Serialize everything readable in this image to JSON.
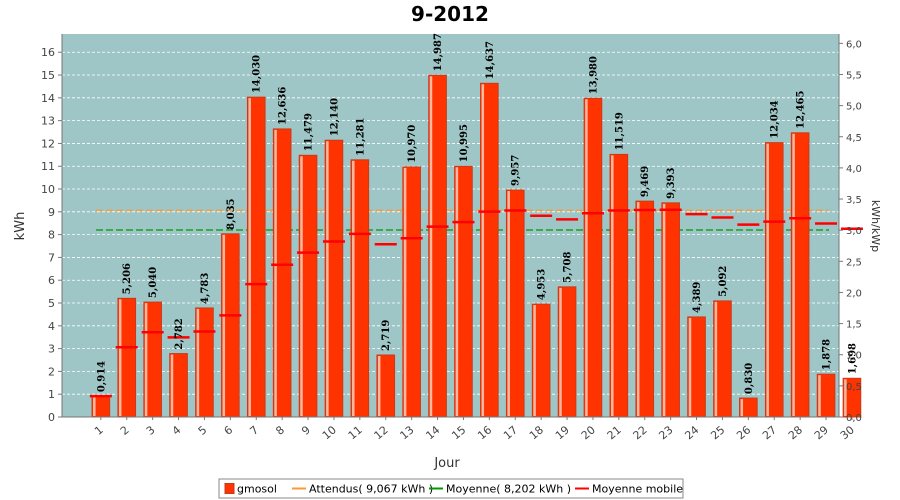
{
  "chart_data": {
    "type": "bar",
    "title": "9-2012",
    "xlabel": "Jour",
    "ylabel": "kWh",
    "ylabel_right": "kWh/kWp",
    "ylim": [
      0,
      16.8
    ],
    "ylim_right": [
      0,
      6.15
    ],
    "yticks": [
      0,
      1,
      2,
      3,
      4,
      5,
      6,
      7,
      8,
      9,
      10,
      11,
      12,
      13,
      14,
      15,
      16
    ],
    "yticks_right": [
      "0,0",
      "0,5",
      "1,0",
      "1,5",
      "2,0",
      "2,5",
      "3,0",
      "3,5",
      "4,0",
      "4,5",
      "5,0",
      "5,5",
      "6,0"
    ],
    "categories": [
      "1",
      "2",
      "3",
      "4",
      "5",
      "6",
      "7",
      "8",
      "9",
      "10",
      "11",
      "12",
      "13",
      "14",
      "15",
      "16",
      "17",
      "18",
      "19",
      "20",
      "21",
      "22",
      "23",
      "24",
      "25",
      "26",
      "27",
      "28",
      "29",
      "30"
    ],
    "series": [
      {
        "name": "gmosol",
        "color": "#ff3300",
        "values": [
          0.914,
          5.206,
          5.04,
          2.782,
          4.783,
          8.035,
          14.03,
          12.636,
          11.479,
          12.14,
          11.281,
          2.719,
          10.97,
          14.987,
          10.995,
          14.637,
          9.957,
          4.953,
          5.708,
          13.98,
          11.519,
          9.469,
          9.393,
          4.389,
          5.092,
          0.83,
          12.034,
          12.465,
          1.878,
          1.698
        ],
        "labels": [
          "0,914",
          "5,206",
          "5,040",
          "2,782",
          "4,783",
          "8,035",
          "14,030",
          "12,636",
          "11,479",
          "12,140",
          "11,281",
          "2,719",
          "10,970",
          "14,987",
          "10,995",
          "14,637",
          "9,957",
          "4,953",
          "5,708",
          "13,980",
          "11,519",
          "9,469",
          "9,393",
          "4,389",
          "5,092",
          "0,830",
          "12,034",
          "12,465",
          "1,878",
          "1,698"
        ]
      },
      {
        "name": "Moyenne mobile",
        "color": "#ff0000",
        "values": [
          0.914,
          3.06,
          3.72,
          3.49,
          3.75,
          4.46,
          5.83,
          6.68,
          7.21,
          7.7,
          8.03,
          7.58,
          7.84,
          8.35,
          8.55,
          9.01,
          9.06,
          8.83,
          8.67,
          8.94,
          9.06,
          9.08,
          9.09,
          8.9,
          8.75,
          8.44,
          8.57,
          8.72,
          8.49,
          8.26
        ]
      }
    ],
    "reference_lines": [
      {
        "name": "Attendus( 9,067 kWh )",
        "value": 9.067,
        "color": "#ff9933"
      },
      {
        "name": "Moyenne( 8,202 kWh )",
        "value": 8.202,
        "color": "#009900"
      }
    ],
    "legend": [
      "gmosol",
      "Attendus( 9,067 kWh )",
      "Moyenne( 8,202 kWh )",
      "Moyenne mobile"
    ],
    "legend_position": "bottom",
    "grid": true,
    "colors": {
      "plot_bg": "#9fc6c6",
      "grid": "#ffffff",
      "bar": "#ff3300",
      "bar_edge": "#c83a1a"
    }
  }
}
